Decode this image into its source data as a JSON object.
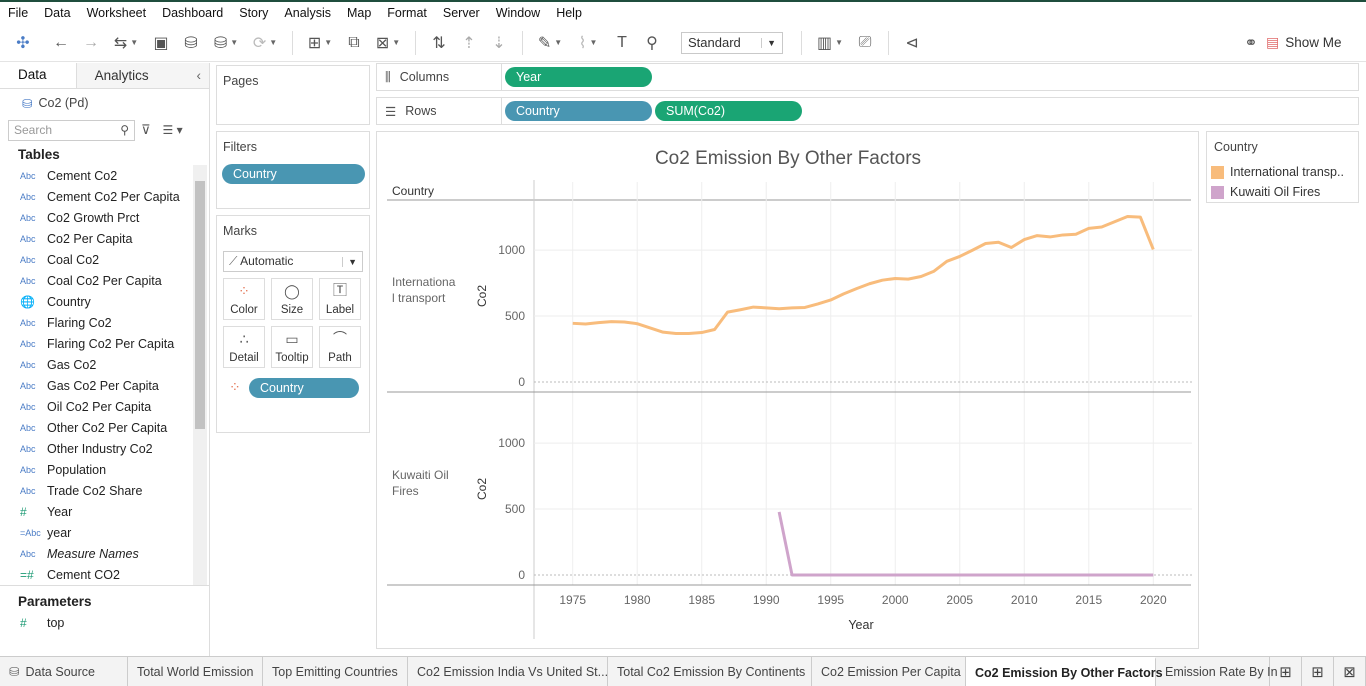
{
  "menu": [
    "File",
    "Data",
    "Worksheet",
    "Dashboard",
    "Story",
    "Analysis",
    "Map",
    "Format",
    "Server",
    "Window",
    "Help"
  ],
  "toolbar": {
    "fit_select": "Standard",
    "show_me": "Show Me"
  },
  "data_pane": {
    "tab_data": "Data",
    "tab_analytics": "Analytics",
    "datasource": "Co2 (Pd)",
    "search_placeholder": "Search",
    "tables_header": "Tables",
    "fields": [
      {
        "type": "Abc",
        "name": "Cement Co2"
      },
      {
        "type": "Abc",
        "name": "Cement Co2 Per Capita"
      },
      {
        "type": "Abc",
        "name": "Co2 Growth Prct"
      },
      {
        "type": "Abc",
        "name": "Co2 Per Capita"
      },
      {
        "type": "Abc",
        "name": "Coal Co2"
      },
      {
        "type": "Abc",
        "name": "Coal Co2 Per Capita"
      },
      {
        "type": "globe",
        "name": "Country"
      },
      {
        "type": "Abc",
        "name": "Flaring Co2"
      },
      {
        "type": "Abc",
        "name": "Flaring Co2 Per Capita"
      },
      {
        "type": "Abc",
        "name": "Gas Co2"
      },
      {
        "type": "Abc",
        "name": "Gas Co2 Per Capita"
      },
      {
        "type": "Abc",
        "name": "Oil Co2 Per Capita"
      },
      {
        "type": "Abc",
        "name": "Other Co2 Per Capita"
      },
      {
        "type": "Abc",
        "name": "Other Industry Co2"
      },
      {
        "type": "Abc",
        "name": "Population"
      },
      {
        "type": "Abc",
        "name": "Trade Co2 Share"
      },
      {
        "type": "#",
        "name": "Year"
      },
      {
        "type": "=Abc",
        "name": "year"
      },
      {
        "type": "Abc",
        "name": "Measure Names",
        "italic": true
      },
      {
        "type": "=#",
        "name": "Cement CO2"
      }
    ],
    "parameters_header": "Parameters",
    "parameters": [
      {
        "type": "#",
        "name": "top"
      }
    ]
  },
  "pages": {
    "title": "Pages"
  },
  "filters": {
    "title": "Filters",
    "pill": "Country"
  },
  "marks": {
    "title": "Marks",
    "type": "Automatic",
    "buttons": [
      "Color",
      "Size",
      "Label",
      "Detail",
      "Tooltip",
      "Path"
    ],
    "pill": "Country"
  },
  "shelves": {
    "columns_label": "Columns",
    "columns_pill": "Year",
    "rows_label": "Rows",
    "rows_pill_1": "Country",
    "rows_pill_2": "SUM(Co2)"
  },
  "chart_data": {
    "type": "line",
    "title": "Co2 Emission By Other Factors",
    "row_header": "Country",
    "xlabel": "Year",
    "ylabel": "Co2",
    "x_ticks": [
      1975,
      1980,
      1985,
      1990,
      1995,
      2000,
      2005,
      2010,
      2015,
      2020
    ],
    "y_ticks": [
      0,
      500,
      1000
    ],
    "xlim": [
      1972,
      2023
    ],
    "ylim": [
      0,
      1380
    ],
    "panes": [
      {
        "label": "International transport",
        "color": "#f8bc7c",
        "x": [
          1975,
          1976,
          1977,
          1978,
          1979,
          1980,
          1981,
          1982,
          1983,
          1984,
          1985,
          1986,
          1987,
          1988,
          1989,
          1990,
          1991,
          1992,
          1993,
          1994,
          1995,
          1996,
          1997,
          1998,
          1999,
          2000,
          2001,
          2002,
          2003,
          2004,
          2005,
          2006,
          2007,
          2008,
          2009,
          2010,
          2011,
          2012,
          2013,
          2014,
          2015,
          2016,
          2017,
          2018,
          2019,
          2020
        ],
        "y": [
          445,
          440,
          450,
          458,
          455,
          442,
          410,
          378,
          368,
          368,
          375,
          398,
          530,
          548,
          568,
          562,
          555,
          562,
          565,
          592,
          622,
          668,
          708,
          745,
          772,
          785,
          780,
          800,
          840,
          915,
          952,
          1000,
          1050,
          1060,
          1020,
          1080,
          1110,
          1100,
          1115,
          1120,
          1165,
          1175,
          1215,
          1255,
          1250,
          1005
        ]
      },
      {
        "label": "Kuwaiti Oil Fires",
        "color": "#cfa4cb",
        "x": [
          1991,
          1992,
          1993,
          1994,
          1995,
          1996,
          1997,
          1998,
          1999,
          2000,
          2001,
          2002,
          2003,
          2004,
          2005,
          2006,
          2007,
          2008,
          2009,
          2010,
          2011,
          2012,
          2013,
          2014,
          2015,
          2016,
          2017,
          2018,
          2019,
          2020
        ],
        "y": [
          478,
          0,
          0,
          0,
          0,
          0,
          0,
          0,
          0,
          0,
          0,
          0,
          0,
          0,
          0,
          0,
          0,
          0,
          0,
          0,
          0,
          0,
          0,
          0,
          0,
          0,
          0,
          0,
          0,
          0
        ]
      }
    ],
    "row_label_lines": [
      [
        "Internationa",
        "l transport"
      ],
      [
        "Kuwaiti Oil",
        "Fires"
      ]
    ]
  },
  "legend": {
    "title": "Country",
    "items": [
      {
        "label": "International transp..",
        "color": "#f8bc7c"
      },
      {
        "label": "Kuwaiti Oil Fires",
        "color": "#cfa4cb"
      }
    ]
  },
  "bottom_tabs": [
    {
      "label": "Data Source",
      "width": 128
    },
    {
      "label": "Total World Emission",
      "width": 135
    },
    {
      "label": "Top Emitting Countries",
      "width": 145
    },
    {
      "label": "Co2 Emission India Vs United St...",
      "width": 200
    },
    {
      "label": "Total Co2 Emission By Continents",
      "width": 204
    },
    {
      "label": "Co2 Emission Per Capita",
      "width": 154
    },
    {
      "label": "Co2 Emission By Other Factors",
      "width": 190,
      "active": true
    },
    {
      "label": "Emission Rate By In",
      "width": 114
    }
  ]
}
